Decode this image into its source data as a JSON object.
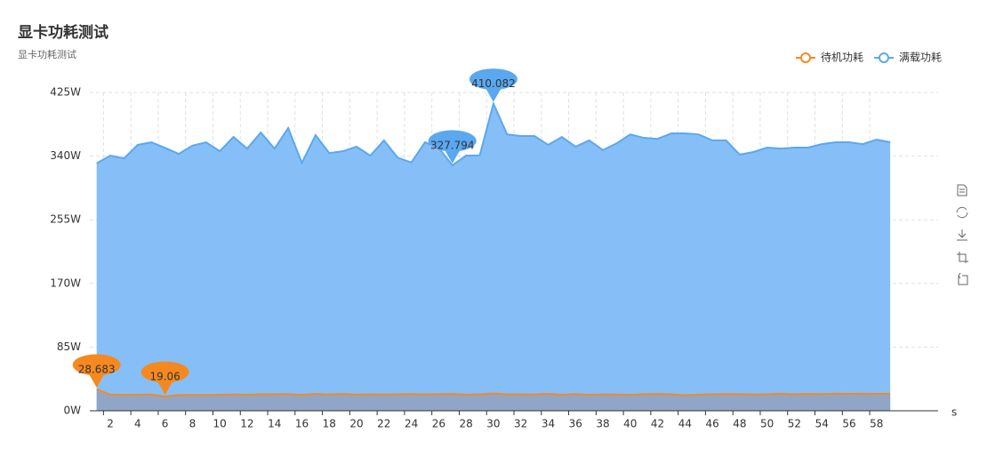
{
  "chart_data": {
    "type": "area",
    "title": "显卡功耗测试",
    "subtitle": "显卡功耗测试",
    "x_label": "s",
    "categories": [
      null,
      "2",
      null,
      "4",
      null,
      "6",
      null,
      "8",
      null,
      "10",
      null,
      "12",
      null,
      "14",
      null,
      "16",
      null,
      "18",
      null,
      "20",
      null,
      "22",
      null,
      "24",
      null,
      "26",
      null,
      "28",
      null,
      "30",
      null,
      "32",
      null,
      "34",
      null,
      "36",
      null,
      "38",
      null,
      "40",
      null,
      "42",
      null,
      "44",
      null,
      "46",
      null,
      "48",
      null,
      "50",
      null,
      "52",
      null,
      "54",
      null,
      "56",
      null,
      "58",
      null,
      null,
      null,
      null
    ],
    "series": [
      {
        "name": "待机功耗",
        "color": "#f5891f",
        "fill": "#8fa6c8",
        "values": [
          28.683,
          21.5,
          21.2,
          21.3,
          21.6,
          19.06,
          21.0,
          21.2,
          21.1,
          21.3,
          21.8,
          21.4,
          22.1,
          21.9,
          22.3,
          21.2,
          22.6,
          21.7,
          22.4,
          21.5,
          21.9,
          21.6,
          22.0,
          22.3,
          21.8,
          22.1,
          22.4,
          21.5,
          21.9,
          23.2,
          22.0,
          21.8,
          21.6,
          22.7,
          21.4,
          22.2,
          21.3,
          21.8,
          21.6,
          21.2,
          22.1,
          22.4,
          21.9,
          20.8,
          21.5,
          22.0,
          22.3,
          22.1,
          21.7,
          21.9,
          22.8,
          22.0,
          22.6,
          22.2,
          22.9,
          22.5,
          22.8,
          22.6,
          22.7,
          null,
          null,
          null
        ]
      },
      {
        "name": "满载功耗",
        "color": "#5aa8f0",
        "fill": "#86bff8",
        "values": [
          330.5,
          340.7,
          337,
          355,
          358.5,
          351,
          343,
          354,
          358.5,
          346.6,
          365.6,
          350,
          371.5,
          350,
          377.5,
          331,
          368,
          344,
          346.6,
          352.6,
          340.7,
          361,
          338,
          331.5,
          358.5,
          351,
          327.794,
          340.7,
          341,
          410.082,
          369,
          366.8,
          366.8,
          355,
          365.6,
          352.6,
          361,
          348,
          357,
          369,
          364.4,
          363,
          370.4,
          370.4,
          369,
          361,
          361,
          342,
          345.5,
          351.4,
          350,
          351.4,
          351.4,
          356,
          358.5,
          358.5,
          356,
          362,
          358.5,
          null,
          null,
          null
        ]
      }
    ],
    "mark_max_min": true,
    "ylim": [
      0,
      425
    ],
    "yticks": [
      {
        "value": 0,
        "label": "0W"
      },
      {
        "value": 85,
        "label": "85W"
      },
      {
        "value": 170,
        "label": "170W"
      },
      {
        "value": 255,
        "label": "255W"
      },
      {
        "value": 340,
        "label": "340W"
      },
      {
        "value": 425,
        "label": "425W"
      }
    ],
    "grid": true,
    "legend": "top-right"
  }
}
